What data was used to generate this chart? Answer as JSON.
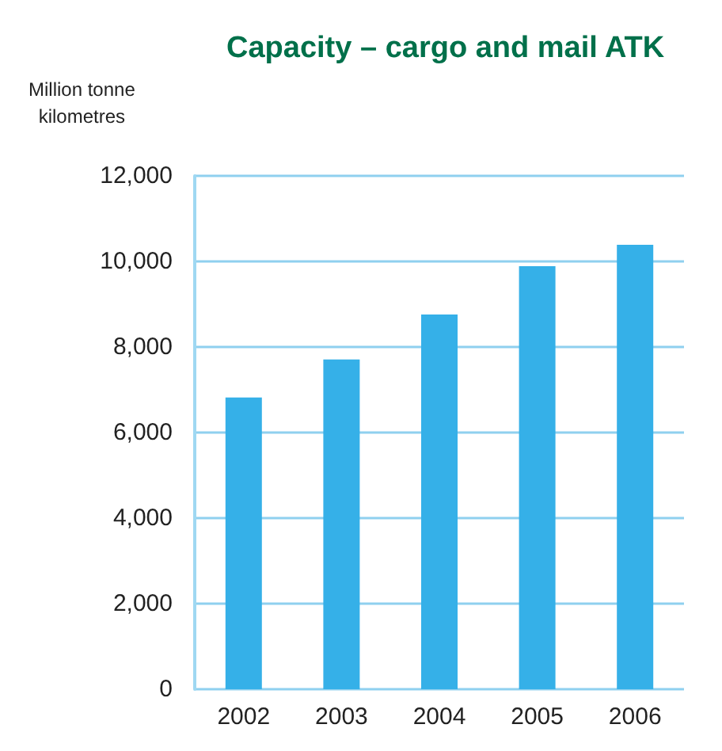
{
  "chart_data": {
    "type": "bar",
    "title": "Capacity – cargo and mail ATK",
    "ylabel": "Million tonne\nkilometres",
    "categories": [
      "2002",
      "2003",
      "2004",
      "2005",
      "2006"
    ],
    "values": [
      6820,
      7710,
      8760,
      9890,
      10390
    ],
    "color": "#35b0e8",
    "ylim": [
      0,
      12000
    ],
    "yticks": [
      0,
      {
        "value": 2000,
        "label": "2,000"
      },
      {
        "value": 4000,
        "label": "4,000"
      },
      {
        "value": 6000,
        "label": "6,000"
      },
      {
        "value": 8000,
        "label": "8,000"
      },
      {
        "value": 10000,
        "label": "10,000"
      },
      {
        "value": 12000,
        "label": "12,000"
      }
    ],
    "grid": "y"
  }
}
